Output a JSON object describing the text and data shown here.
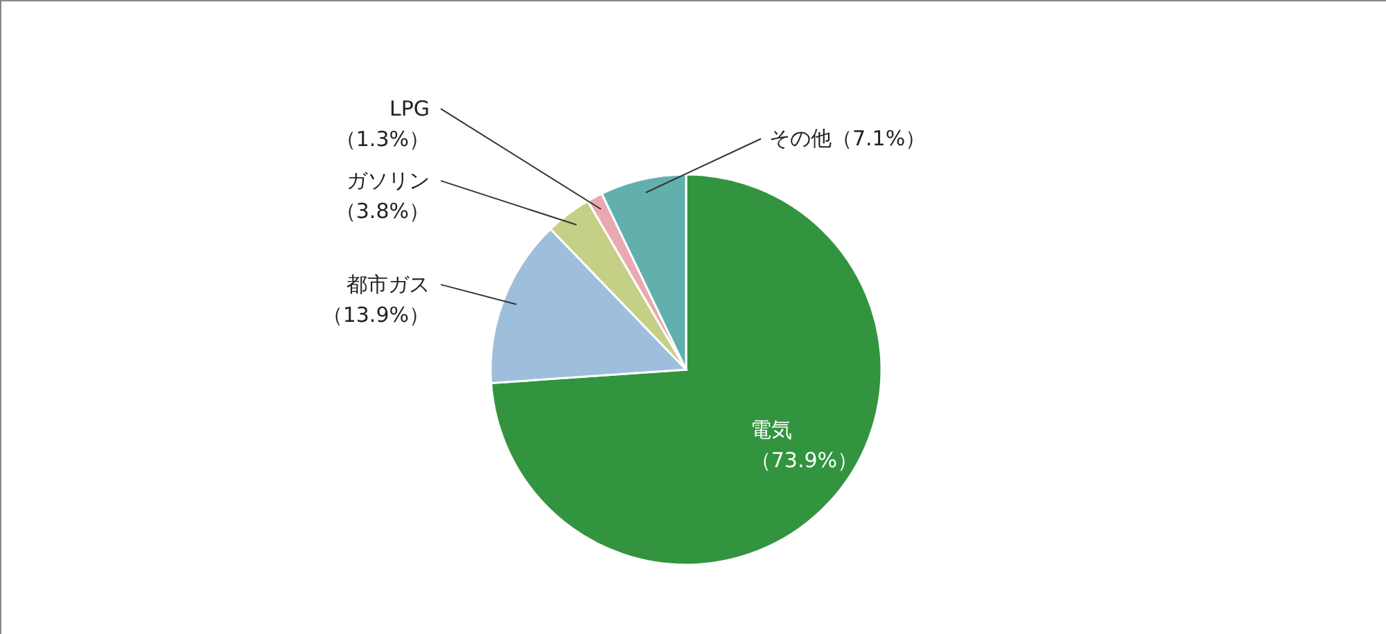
{
  "chart_data": {
    "type": "pie",
    "categories": [
      "電気",
      "都市ガス",
      "ガソリン",
      "LPG",
      "その他"
    ],
    "values": [
      73.9,
      13.9,
      3.8,
      1.3,
      7.1
    ],
    "colors": [
      "#339440",
      "#9dbfdc",
      "#c5cf85",
      "#e8aab0",
      "#62b0ad"
    ],
    "value_labels": [
      "（73.9%）",
      "（13.9%）",
      "（3.8%）",
      "（1.3%）",
      "（7.1%）"
    ]
  }
}
